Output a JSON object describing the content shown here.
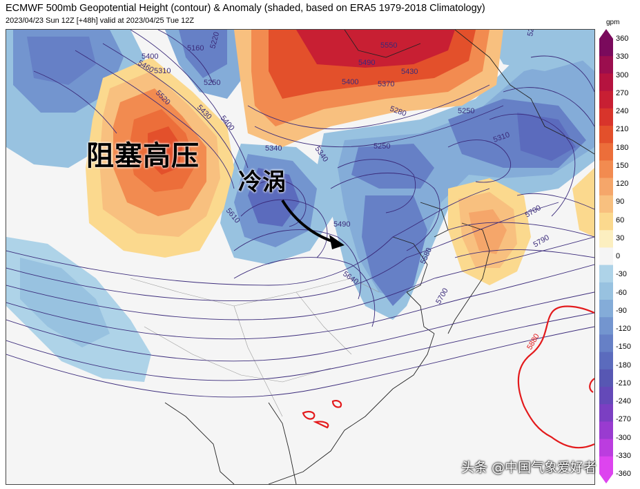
{
  "header": {
    "title": "ECMWF 500mb Geopotential Height (contour) & Anomaly (shaded, based on ERA5 1979-2018 Climatology)",
    "subtitle": "2023/04/23 Sun 12Z [+48h] valid at 2023/04/25 Tue 12Z"
  },
  "colorbar": {
    "units": "gpm",
    "ticks": [
      "360",
      "330",
      "300",
      "270",
      "240",
      "210",
      "180",
      "150",
      "120",
      "90",
      "60",
      "30",
      "0",
      "-30",
      "-60",
      "-90",
      "-120",
      "-150",
      "-180",
      "-210",
      "-240",
      "-270",
      "-300",
      "-330",
      "-360"
    ],
    "colors": [
      "#7a0a5c",
      "#9b0e4e",
      "#b5133f",
      "#c81f33",
      "#d8342b",
      "#e3502b",
      "#ec6e3a",
      "#f28b50",
      "#f5a66a",
      "#f8c07f",
      "#fbd98e",
      "#fcefc0",
      "#f5f5f5",
      "#aed3e8",
      "#98c2e0",
      "#84acd8",
      "#7395cf",
      "#6680c6",
      "#5b6bbd",
      "#5757b3",
      "#6449b8",
      "#7b3fc2",
      "#993bd0",
      "#bb3ddf",
      "#dd44ef"
    ]
  },
  "map": {
    "contour_labels_purple": [
      "5160",
      "5310",
      "5250",
      "5220",
      "5400",
      "5520",
      "5430",
      "5460",
      "5400",
      "5490",
      "5550",
      "5430",
      "5400",
      "5370",
      "5280",
      "5250",
      "5250",
      "5310",
      "5340",
      "5340",
      "5250",
      "5610",
      "5490",
      "5640",
      "5580",
      "5700",
      "5790",
      "5700"
    ],
    "contour_labels_red": [
      "5880"
    ],
    "annotations": {
      "blocking_high": "阻塞高压",
      "cold_vortex": "冷涡"
    }
  },
  "watermark": "头条 @中国气象爱好者"
}
